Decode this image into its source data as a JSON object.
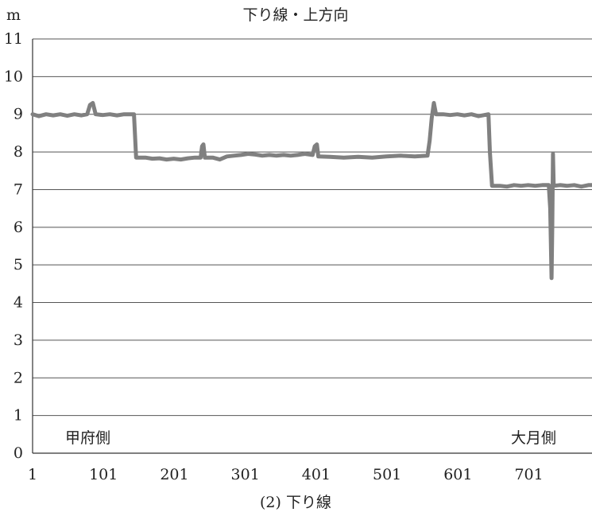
{
  "chart_data": {
    "type": "line",
    "title": "下り線・上方向",
    "ylabel": "m",
    "caption": "(2) 下り線",
    "ylim": [
      0,
      11
    ],
    "xlim": [
      1,
      790
    ],
    "y_ticks": [
      "0",
      "1",
      "2",
      "3",
      "4",
      "5",
      "6",
      "7",
      "8",
      "9",
      "10",
      "11"
    ],
    "x_ticks": [
      "1",
      "101",
      "201",
      "301",
      "401",
      "501",
      "601",
      "701"
    ],
    "left_annotation": "甲府側",
    "right_annotation": "大月側",
    "grid": "horizontal",
    "series": [
      {
        "color": "#808080",
        "points": [
          [
            1,
            9.0
          ],
          [
            10,
            8.95
          ],
          [
            20,
            9.0
          ],
          [
            30,
            8.97
          ],
          [
            40,
            9.0
          ],
          [
            50,
            8.96
          ],
          [
            60,
            9.0
          ],
          [
            70,
            8.97
          ],
          [
            78,
            9.0
          ],
          [
            82,
            9.25
          ],
          [
            86,
            9.3
          ],
          [
            90,
            9.0
          ],
          [
            100,
            8.98
          ],
          [
            110,
            9.0
          ],
          [
            120,
            8.97
          ],
          [
            130,
            9.0
          ],
          [
            140,
            9.0
          ],
          [
            144,
            9.0
          ],
          [
            147,
            7.85
          ],
          [
            160,
            7.85
          ],
          [
            170,
            7.82
          ],
          [
            180,
            7.83
          ],
          [
            190,
            7.8
          ],
          [
            200,
            7.82
          ],
          [
            210,
            7.8
          ],
          [
            220,
            7.83
          ],
          [
            230,
            7.85
          ],
          [
            238,
            7.85
          ],
          [
            240,
            8.15
          ],
          [
            242,
            8.2
          ],
          [
            244,
            7.85
          ],
          [
            255,
            7.85
          ],
          [
            265,
            7.8
          ],
          [
            275,
            7.88
          ],
          [
            285,
            7.9
          ],
          [
            295,
            7.92
          ],
          [
            305,
            7.95
          ],
          [
            315,
            7.93
          ],
          [
            325,
            7.9
          ],
          [
            335,
            7.92
          ],
          [
            345,
            7.9
          ],
          [
            355,
            7.92
          ],
          [
            365,
            7.9
          ],
          [
            375,
            7.92
          ],
          [
            385,
            7.95
          ],
          [
            396,
            7.92
          ],
          [
            399,
            8.15
          ],
          [
            402,
            8.2
          ],
          [
            404,
            7.88
          ],
          [
            420,
            7.87
          ],
          [
            440,
            7.85
          ],
          [
            460,
            7.87
          ],
          [
            480,
            7.85
          ],
          [
            500,
            7.88
          ],
          [
            520,
            7.9
          ],
          [
            540,
            7.88
          ],
          [
            558,
            7.9
          ],
          [
            561,
            8.3
          ],
          [
            564,
            8.9
          ],
          [
            567,
            9.3
          ],
          [
            570,
            9.0
          ],
          [
            580,
            9.0
          ],
          [
            590,
            8.98
          ],
          [
            600,
            9.0
          ],
          [
            610,
            8.97
          ],
          [
            620,
            9.0
          ],
          [
            630,
            8.95
          ],
          [
            644,
            9.0
          ],
          [
            646,
            8.0
          ],
          [
            649,
            7.1
          ],
          [
            660,
            7.1
          ],
          [
            670,
            7.08
          ],
          [
            680,
            7.12
          ],
          [
            690,
            7.1
          ],
          [
            700,
            7.12
          ],
          [
            710,
            7.1
          ],
          [
            720,
            7.12
          ],
          [
            729,
            7.12
          ],
          [
            731,
            6.5
          ],
          [
            733,
            4.65
          ],
          [
            734,
            6.0
          ],
          [
            735,
            7.95
          ],
          [
            736,
            7.1
          ],
          [
            745,
            7.12
          ],
          [
            755,
            7.1
          ],
          [
            765,
            7.12
          ],
          [
            775,
            7.08
          ],
          [
            785,
            7.12
          ],
          [
            790,
            7.12
          ]
        ]
      }
    ]
  }
}
